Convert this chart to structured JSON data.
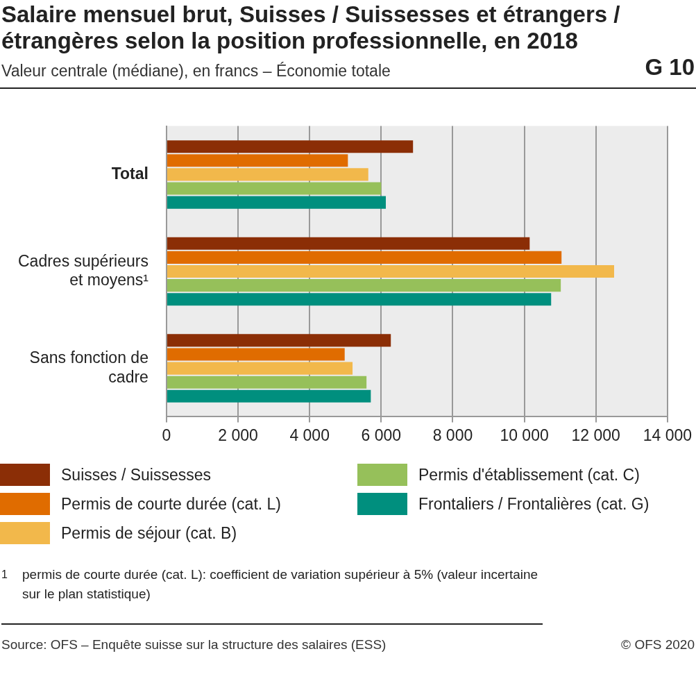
{
  "chart_data": {
    "type": "bar",
    "orientation": "horizontal",
    "title": "Salaire mensuel brut, Suisses / Suissesses et étrangers / étrangères selon la position professionnelle, en 2018",
    "subtitle": "Valeur centrale (médiane), en francs – Économie totale",
    "annotations": [
      "G 10",
      "1   permis de courte durée (cat. L): coefficient de variation supérieur à 5% (valeur incertaine sur le plan statistique)",
      "Source: OFS – Enquête suisse sur la structure des salaires (ESS)",
      "© OFS 2020"
    ],
    "categories": [
      "Total",
      "Cadres supérieurs et moyens¹",
      "Sans fonction de cadre"
    ],
    "series": [
      {
        "name": "Suisses / Suissesses",
        "color": "#8b2e06",
        "values": [
          6890,
          10150,
          6270
        ]
      },
      {
        "name": "Permis de courte durée (cat. L)",
        "color": "#e06c00",
        "values": [
          5070,
          11040,
          4980
        ]
      },
      {
        "name": "Permis de séjour (cat. B)",
        "color": "#f2b84b",
        "values": [
          5640,
          12510,
          5200
        ]
      },
      {
        "name": "Permis d'établissement (cat. C)",
        "color": "#96c05a",
        "values": [
          6000,
          11020,
          5590
        ]
      },
      {
        "name": "Frontaliers / Frontalières (cat. G)",
        "color": "#008f7e",
        "values": [
          6130,
          10750,
          5710
        ]
      }
    ],
    "xlim": [
      0,
      14000
    ],
    "xticks": [
      0,
      {
        "value": 2000,
        "label": "2 000"
      },
      {
        "value": 4000,
        "label": "4 000"
      },
      {
        "value": 6000,
        "label": "6 000"
      },
      {
        "value": 8000,
        "label": "8 000"
      },
      {
        "value": 10000,
        "label": "10 000"
      },
      {
        "value": 12000,
        "label": "12 000"
      },
      {
        "value": 14000,
        "label": "14 000"
      }
    ],
    "grid": "x",
    "legend": "bottom"
  }
}
